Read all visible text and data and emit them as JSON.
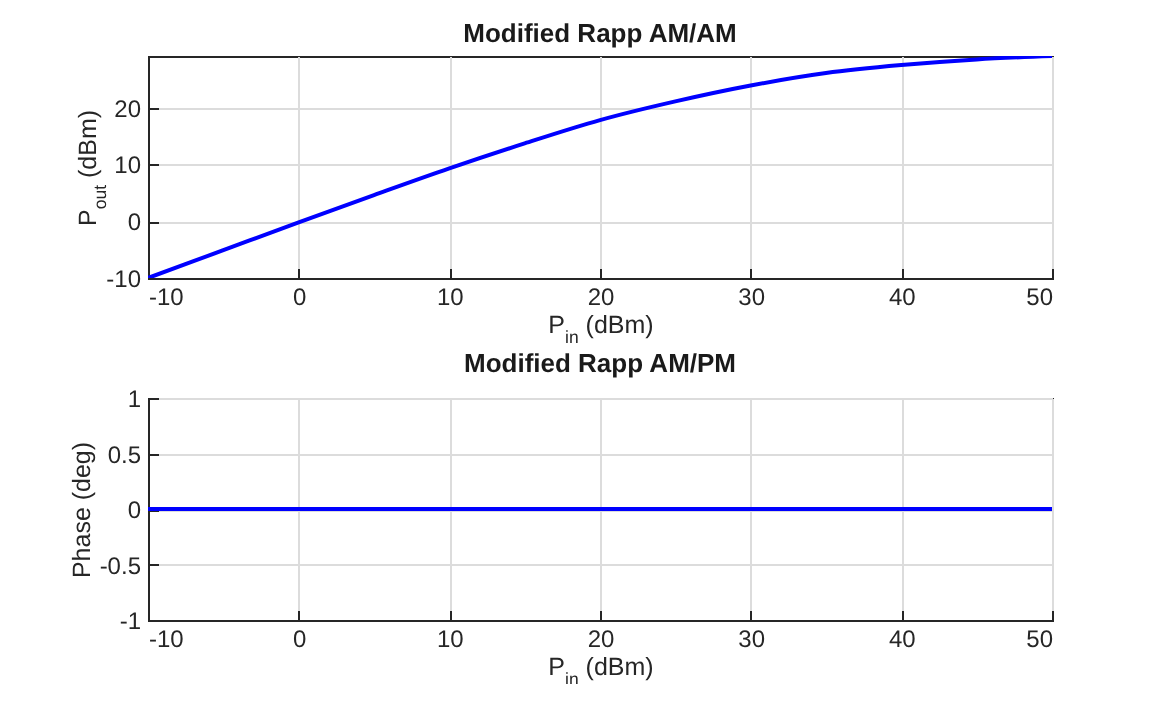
{
  "chart_data": [
    {
      "type": "line",
      "title": "Modified Rapp AM/AM",
      "xlabel": "P$_{in}$ (dBm)",
      "ylabel": "P$_{out}$ (dBm)",
      "xlim": [
        -10,
        50
      ],
      "ylim": [
        -10,
        29.1
      ],
      "xticks": [
        -10,
        0,
        10,
        20,
        30,
        40,
        50
      ],
      "yticks": [
        -10,
        0,
        10,
        20
      ],
      "grid": true,
      "series": [
        {
          "color": "#0000ff",
          "x": [
            -10,
            -5,
            0,
            5,
            10,
            15,
            20,
            25,
            30,
            35,
            40,
            45,
            50
          ],
          "values": [
            -10,
            -5.1,
            -0.2,
            4.6,
            9.3,
            13.7,
            17.8,
            21.1,
            23.9,
            26.1,
            27.5,
            28.5,
            29.1
          ]
        }
      ]
    },
    {
      "type": "line",
      "title": "Modified Rapp AM/PM",
      "xlabel": "P$_{in}$ (dBm)",
      "ylabel": "Phase (deg)",
      "xlim": [
        -10,
        50
      ],
      "ylim": [
        -1,
        1
      ],
      "xticks": [
        -10,
        0,
        10,
        20,
        30,
        40,
        50
      ],
      "yticks": [
        -1,
        -0.5,
        0,
        0.5,
        1
      ],
      "grid": true,
      "series": [
        {
          "color": "#0000ff",
          "x": [
            -10,
            50
          ],
          "values": [
            0,
            0
          ]
        }
      ]
    }
  ]
}
